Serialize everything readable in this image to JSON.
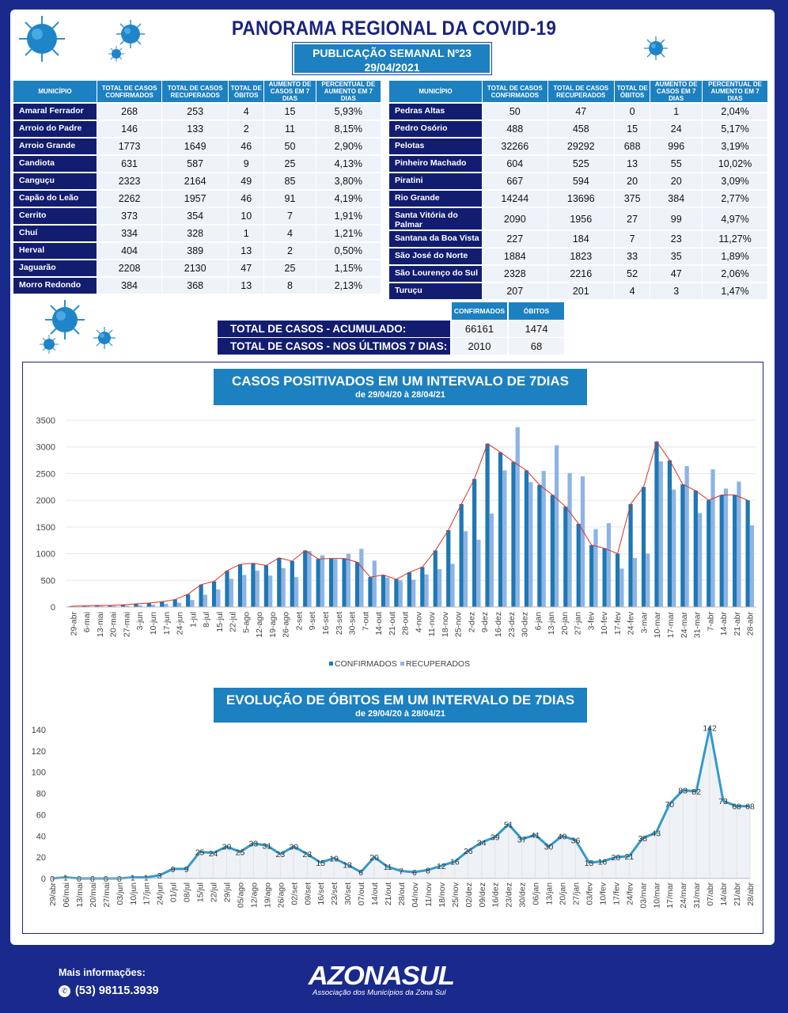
{
  "header": {
    "title": "PANORAMA REGIONAL DA COVID-19",
    "publication": "PUBLICAÇÃO SEMANAL Nº23",
    "date": "29/04/2021"
  },
  "municipality_table": {
    "headers": [
      "MUNICÍPIO",
      "TOTAL DE CASOS CONFIRMADOS",
      "TOTAL DE CASOS RECUPERADOS",
      "TOTAL DE ÓBITOS",
      "AUMENTO DE CASOS EM 7 DIAS",
      "PERCENTUAL DE AUMENTO EM 7 DIAS"
    ],
    "left": [
      [
        "Amaral Ferrador",
        "268",
        "253",
        "4",
        "15",
        "5,93%"
      ],
      [
        "Arroio do Padre",
        "146",
        "133",
        "2",
        "11",
        "8,15%"
      ],
      [
        "Arroio Grande",
        "1773",
        "1649",
        "46",
        "50",
        "2,90%"
      ],
      [
        "Candiota",
        "631",
        "587",
        "9",
        "25",
        "4,13%"
      ],
      [
        "Canguçu",
        "2323",
        "2164",
        "49",
        "85",
        "3,80%"
      ],
      [
        "Capão do Leão",
        "2262",
        "1957",
        "46",
        "91",
        "4,19%"
      ],
      [
        "Cerrito",
        "373",
        "354",
        "10",
        "7",
        "1,91%"
      ],
      [
        "Chuí",
        "334",
        "328",
        "1",
        "4",
        "1,21%"
      ],
      [
        "Herval",
        "404",
        "389",
        "13",
        "2",
        "0,50%"
      ],
      [
        "Jaguarão",
        "2208",
        "2130",
        "47",
        "25",
        "1,15%"
      ],
      [
        "Morro Redondo",
        "384",
        "368",
        "13",
        "8",
        "2,13%"
      ]
    ],
    "right": [
      [
        "Pedras Altas",
        "50",
        "47",
        "0",
        "1",
        "2,04%"
      ],
      [
        "Pedro Osório",
        "488",
        "458",
        "15",
        "24",
        "5,17%"
      ],
      [
        "Pelotas",
        "32266",
        "29292",
        "688",
        "996",
        "3,19%"
      ],
      [
        "Pinheiro Machado",
        "604",
        "525",
        "13",
        "55",
        "10,02%"
      ],
      [
        "Piratini",
        "667",
        "594",
        "20",
        "20",
        "3,09%"
      ],
      [
        "Rio Grande",
        "14244",
        "13696",
        "375",
        "384",
        "2,77%"
      ],
      [
        "Santa Vitória do Palmar",
        "2090",
        "1956",
        "27",
        "99",
        "4,97%"
      ],
      [
        "Santana da Boa Vista",
        "227",
        "184",
        "7",
        "23",
        "11,27%"
      ],
      [
        "São José do Norte",
        "1884",
        "1823",
        "33",
        "35",
        "1,89%"
      ],
      [
        "São Lourenço do Sul",
        "2328",
        "2216",
        "52",
        "47",
        "2,06%"
      ],
      [
        "Turuçu",
        "207",
        "201",
        "4",
        "3",
        "1,47%"
      ]
    ]
  },
  "totals": {
    "col_confirmed": "CONFIRMADOS",
    "col_deaths": "ÓBITOS",
    "rows": [
      {
        "label": "TOTAL DE CASOS  - ACUMULADO:",
        "confirmed": "66161",
        "deaths": "1474"
      },
      {
        "label": "TOTAL DE CASOS  - NOS ÚLTIMOS 7 DIAS:",
        "confirmed": "2010",
        "deaths": "68"
      }
    ]
  },
  "chart_data": [
    {
      "type": "bar",
      "title": "CASOS POSITIVADOS EM UM INTERVALO DE 7DIAS",
      "subtitle": "de 29/04/20 à 28/04/21",
      "categories": [
        "29-abr",
        "6-mai",
        "13-mai",
        "20-mai",
        "27-mai",
        "3-jun",
        "10-jun",
        "17-jun",
        "24-jun",
        "1-jul",
        "8-jul",
        "15-jul",
        "22-jul",
        "29-jul",
        "5-ago",
        "12-ago",
        "19-ago",
        "26-ago",
        "2-set",
        "9-set",
        "16-set",
        "23-set",
        "30-set",
        "7-out",
        "14-out",
        "21-out",
        "28-out",
        "4-nov",
        "11-nov",
        "18-nov",
        "25-nov",
        "2-dez",
        "9-dez",
        "16-dez",
        "23-dez",
        "30-dez",
        "6-jan",
        "13-jan",
        "20-jan",
        "27-jan",
        "3-fev",
        "10-fev",
        "17-fev",
        "24-fev",
        "3-mar",
        "10-mar",
        "17-mar",
        "24-mar",
        "31-mar",
        "7-abr",
        "14-abr",
        "21-abr",
        "28-abr"
      ],
      "tick_labels": [
        "29-abr",
        "6-mai",
        "13-mai",
        "20-mai",
        "27-mai",
        "3-jun",
        "10-jun",
        "17-jun",
        "24-jun",
        "1-jul",
        "8-jul",
        "15-jul",
        "22-jul",
        "5-ago",
        "12-ago",
        "19-ago",
        "26-ago",
        "2-set",
        "9-set",
        "16-set",
        "23-set",
        "30-set",
        "7-out",
        "14-out",
        "21-out",
        "28-out",
        "4-nov",
        "11-nov",
        "18-nov",
        "25-nov",
        "2-dez",
        "9-dez",
        "16-dez",
        "23-dez",
        "30-dez",
        "6-jan",
        "13-jan",
        "20-jan",
        "27-jan",
        "3-fev",
        "10-fev",
        "17-fev",
        "24-fev",
        "3-mar",
        "10-mar",
        "17-mar",
        "24-mar",
        "31-mar",
        "7-abr",
        "14-abr",
        "21-abr",
        "28-abr"
      ],
      "series": [
        {
          "name": "CONFIRMADOS",
          "values": [
            15,
            20,
            30,
            30,
            40,
            60,
            75,
            100,
            140,
            240,
            420,
            480,
            680,
            800,
            820,
            780,
            920,
            860,
            1060,
            900,
            910,
            910,
            840,
            560,
            600,
            520,
            650,
            750,
            1060,
            1440,
            1930,
            2400,
            3060,
            2900,
            2720,
            2560,
            2290,
            2100,
            1880,
            1560,
            1160,
            1100,
            1000,
            1930,
            2250,
            3100,
            2750,
            2300,
            2180,
            2000,
            2100,
            2100,
            2000
          ]
        },
        {
          "name": "RECUPERADOS",
          "values": [
            10,
            15,
            20,
            20,
            25,
            35,
            45,
            60,
            80,
            130,
            230,
            330,
            530,
            600,
            680,
            590,
            730,
            560,
            1050,
            970,
            900,
            1000,
            1090,
            870,
            550,
            500,
            510,
            610,
            710,
            810,
            1420,
            1260,
            1750,
            2560,
            3370,
            2340,
            2550,
            3030,
            2510,
            2450,
            1460,
            1570,
            720,
            920,
            1000,
            2730,
            2200,
            2640,
            1760,
            2580,
            2220,
            2350,
            1530
          ]
        }
      ],
      "ylim": [
        0,
        3500
      ],
      "yticks": [
        0,
        500,
        1000,
        1500,
        2000,
        2500,
        3000,
        3500
      ],
      "colors": {
        "CONFIRMADOS": "#1f77b4",
        "RECUPERADOS": "#8db4e2",
        "trend": "#e03020"
      }
    },
    {
      "type": "line",
      "title": "EVOLUÇÃO DE ÓBITOS EM UM INTERVALO DE 7DIAS",
      "subtitle": "de 29/04/20 à 28/04/21",
      "categories": [
        "29/abr",
        "06/mai",
        "13/mai",
        "20/mai",
        "27/mai",
        "03/jun",
        "10/jun",
        "17/jun",
        "24/jun",
        "01/jul",
        "08/jul",
        "15/jul",
        "22/jul",
        "29/jul",
        "05/ago",
        "12/ago",
        "19/ago",
        "26/ago",
        "02/set",
        "09/set",
        "16/set",
        "23/set",
        "30/set",
        "07/out",
        "14/out",
        "21/out",
        "28/out",
        "04/nov",
        "11/nov",
        "18/nov",
        "25/nov",
        "02/dez",
        "09/dez",
        "16/dez",
        "23/dez",
        "30/dez",
        "06/jan",
        "13/jan",
        "20/jan",
        "27/jan",
        "03/fev",
        "10/fev",
        "17/fev",
        "24/fev",
        "03/mar",
        "10/mar",
        "17/mar",
        "24/mar",
        "31/mar",
        "07/abr",
        "14/abr",
        "21/abr",
        "28/abr"
      ],
      "values": [
        0,
        1,
        0,
        0,
        0,
        0,
        1,
        1,
        3,
        9,
        9,
        25,
        24,
        30,
        25,
        33,
        31,
        23,
        30,
        23,
        15,
        19,
        13,
        6,
        20,
        11,
        7,
        6,
        8,
        12,
        16,
        26,
        34,
        39,
        51,
        37,
        41,
        30,
        40,
        36,
        15,
        16,
        20,
        21,
        38,
        43,
        70,
        83,
        82,
        142,
        73,
        68,
        68
      ],
      "ylim": [
        0,
        140
      ],
      "yticks": [
        0,
        20,
        40,
        60,
        80,
        100,
        120,
        140
      ],
      "colors": {
        "line": "#3399cc",
        "area": "#eef2f6"
      }
    }
  ],
  "footer": {
    "more_info": "Mais informações:",
    "phone": "(53) 98115.3939",
    "logo_text": "AZONASUL",
    "logo_subtitle": "Associação dos Municípios da Zona Sul"
  }
}
